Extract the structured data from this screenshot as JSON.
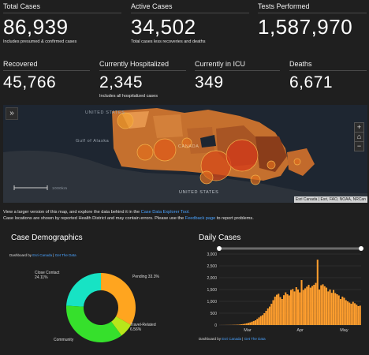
{
  "stats": {
    "total_cases": {
      "label": "Total Cases",
      "value": "86,939",
      "note": "Includes presumed & confirmed cases"
    },
    "active_cases": {
      "label": "Active Cases",
      "value": "34,502",
      "note": "Total cases less recoveries and deaths"
    },
    "tests_performed": {
      "label": "Tests Performed",
      "value": "1,587,970"
    },
    "recovered": {
      "label": "Recovered",
      "value": "45,766"
    },
    "hospitalized": {
      "label": "Currently Hospitalized",
      "value": "2,345",
      "note": "Includes all hospitalized cases"
    },
    "icu": {
      "label": "Currently in ICU",
      "value": "349"
    },
    "deaths": {
      "label": "Deaths",
      "value": "6,671"
    }
  },
  "map": {
    "labels": {
      "united_states_top": "UNITED STATES",
      "gulf": "Gulf of Alaska",
      "canada": "CANADA",
      "united_states": "UNITED STATES",
      "scale": "1000km"
    },
    "attribution": "Esri Canada | Esri, FAO, NOAA, NRCan",
    "expand_icon": "double-chevron-right-icon",
    "zoom_in": "+",
    "zoom_home": "⌂",
    "zoom_out": "−"
  },
  "description": {
    "line1_pre": "View a larger version of this map, and explore the data behind it in the ",
    "line1_link": "Case Data Explorer Tool.",
    "line2_pre": "Case locations are shown by reported Health District and may contain errors. Please use the ",
    "line2_link": "Feedback page",
    "line2_post": " to report problems."
  },
  "demographics": {
    "title": "Case Demographics",
    "dashboard_by": "Dashboard by ",
    "link1": "Esri Canada",
    "separator": " | ",
    "link2": "Get The Data",
    "slices": [
      {
        "label": "Close Contact",
        "pct": "24.11%",
        "value": 24.11,
        "color": "#17e3c4"
      },
      {
        "label": "Pending",
        "pct": "33.3%",
        "value": 33.3,
        "color": "#ffa51f"
      },
      {
        "label": "Travel-Related",
        "pct": "6.56%",
        "value": 6.56,
        "color": "#b8e61a"
      },
      {
        "label": "Community",
        "pct": "",
        "value": 36.03,
        "color": "#36e02c"
      }
    ]
  },
  "daily": {
    "title": "Daily Cases",
    "dashboard_by": "Dashboard by ",
    "link1": "Esri Canada",
    "separator": " | ",
    "link2": "Get The Data"
  },
  "chart_data": {
    "type": "bar",
    "title": "Daily Cases",
    "ylim": [
      0,
      3000
    ],
    "yticks": [
      "3,000",
      "2,500",
      "2,000",
      "1,500",
      "1,000",
      "500",
      "0"
    ],
    "xticks": [
      "Mar",
      "Apr",
      "May"
    ],
    "color": "#ff9e2e",
    "values": [
      1,
      2,
      2,
      3,
      4,
      5,
      6,
      8,
      10,
      12,
      15,
      20,
      30,
      40,
      55,
      70,
      90,
      110,
      140,
      170,
      200,
      260,
      320,
      380,
      420,
      500,
      600,
      700,
      780,
      900,
      1050,
      1200,
      1280,
      1320,
      1180,
      1100,
      1260,
      1380,
      1300,
      1250,
      1480,
      1520,
      1420,
      1600,
      1500,
      1380,
      1900,
      1480,
      1550,
      1620,
      1700,
      1580,
      1650,
      1700,
      1780,
      2760,
      1500,
      1680,
      1720,
      1640,
      1580,
      1420,
      1500,
      1360,
      1480,
      1350,
      1300,
      1250,
      1100,
      1200,
      1150,
      1050,
      1000,
      950,
      900,
      980,
      920,
      860,
      800,
      820
    ]
  }
}
